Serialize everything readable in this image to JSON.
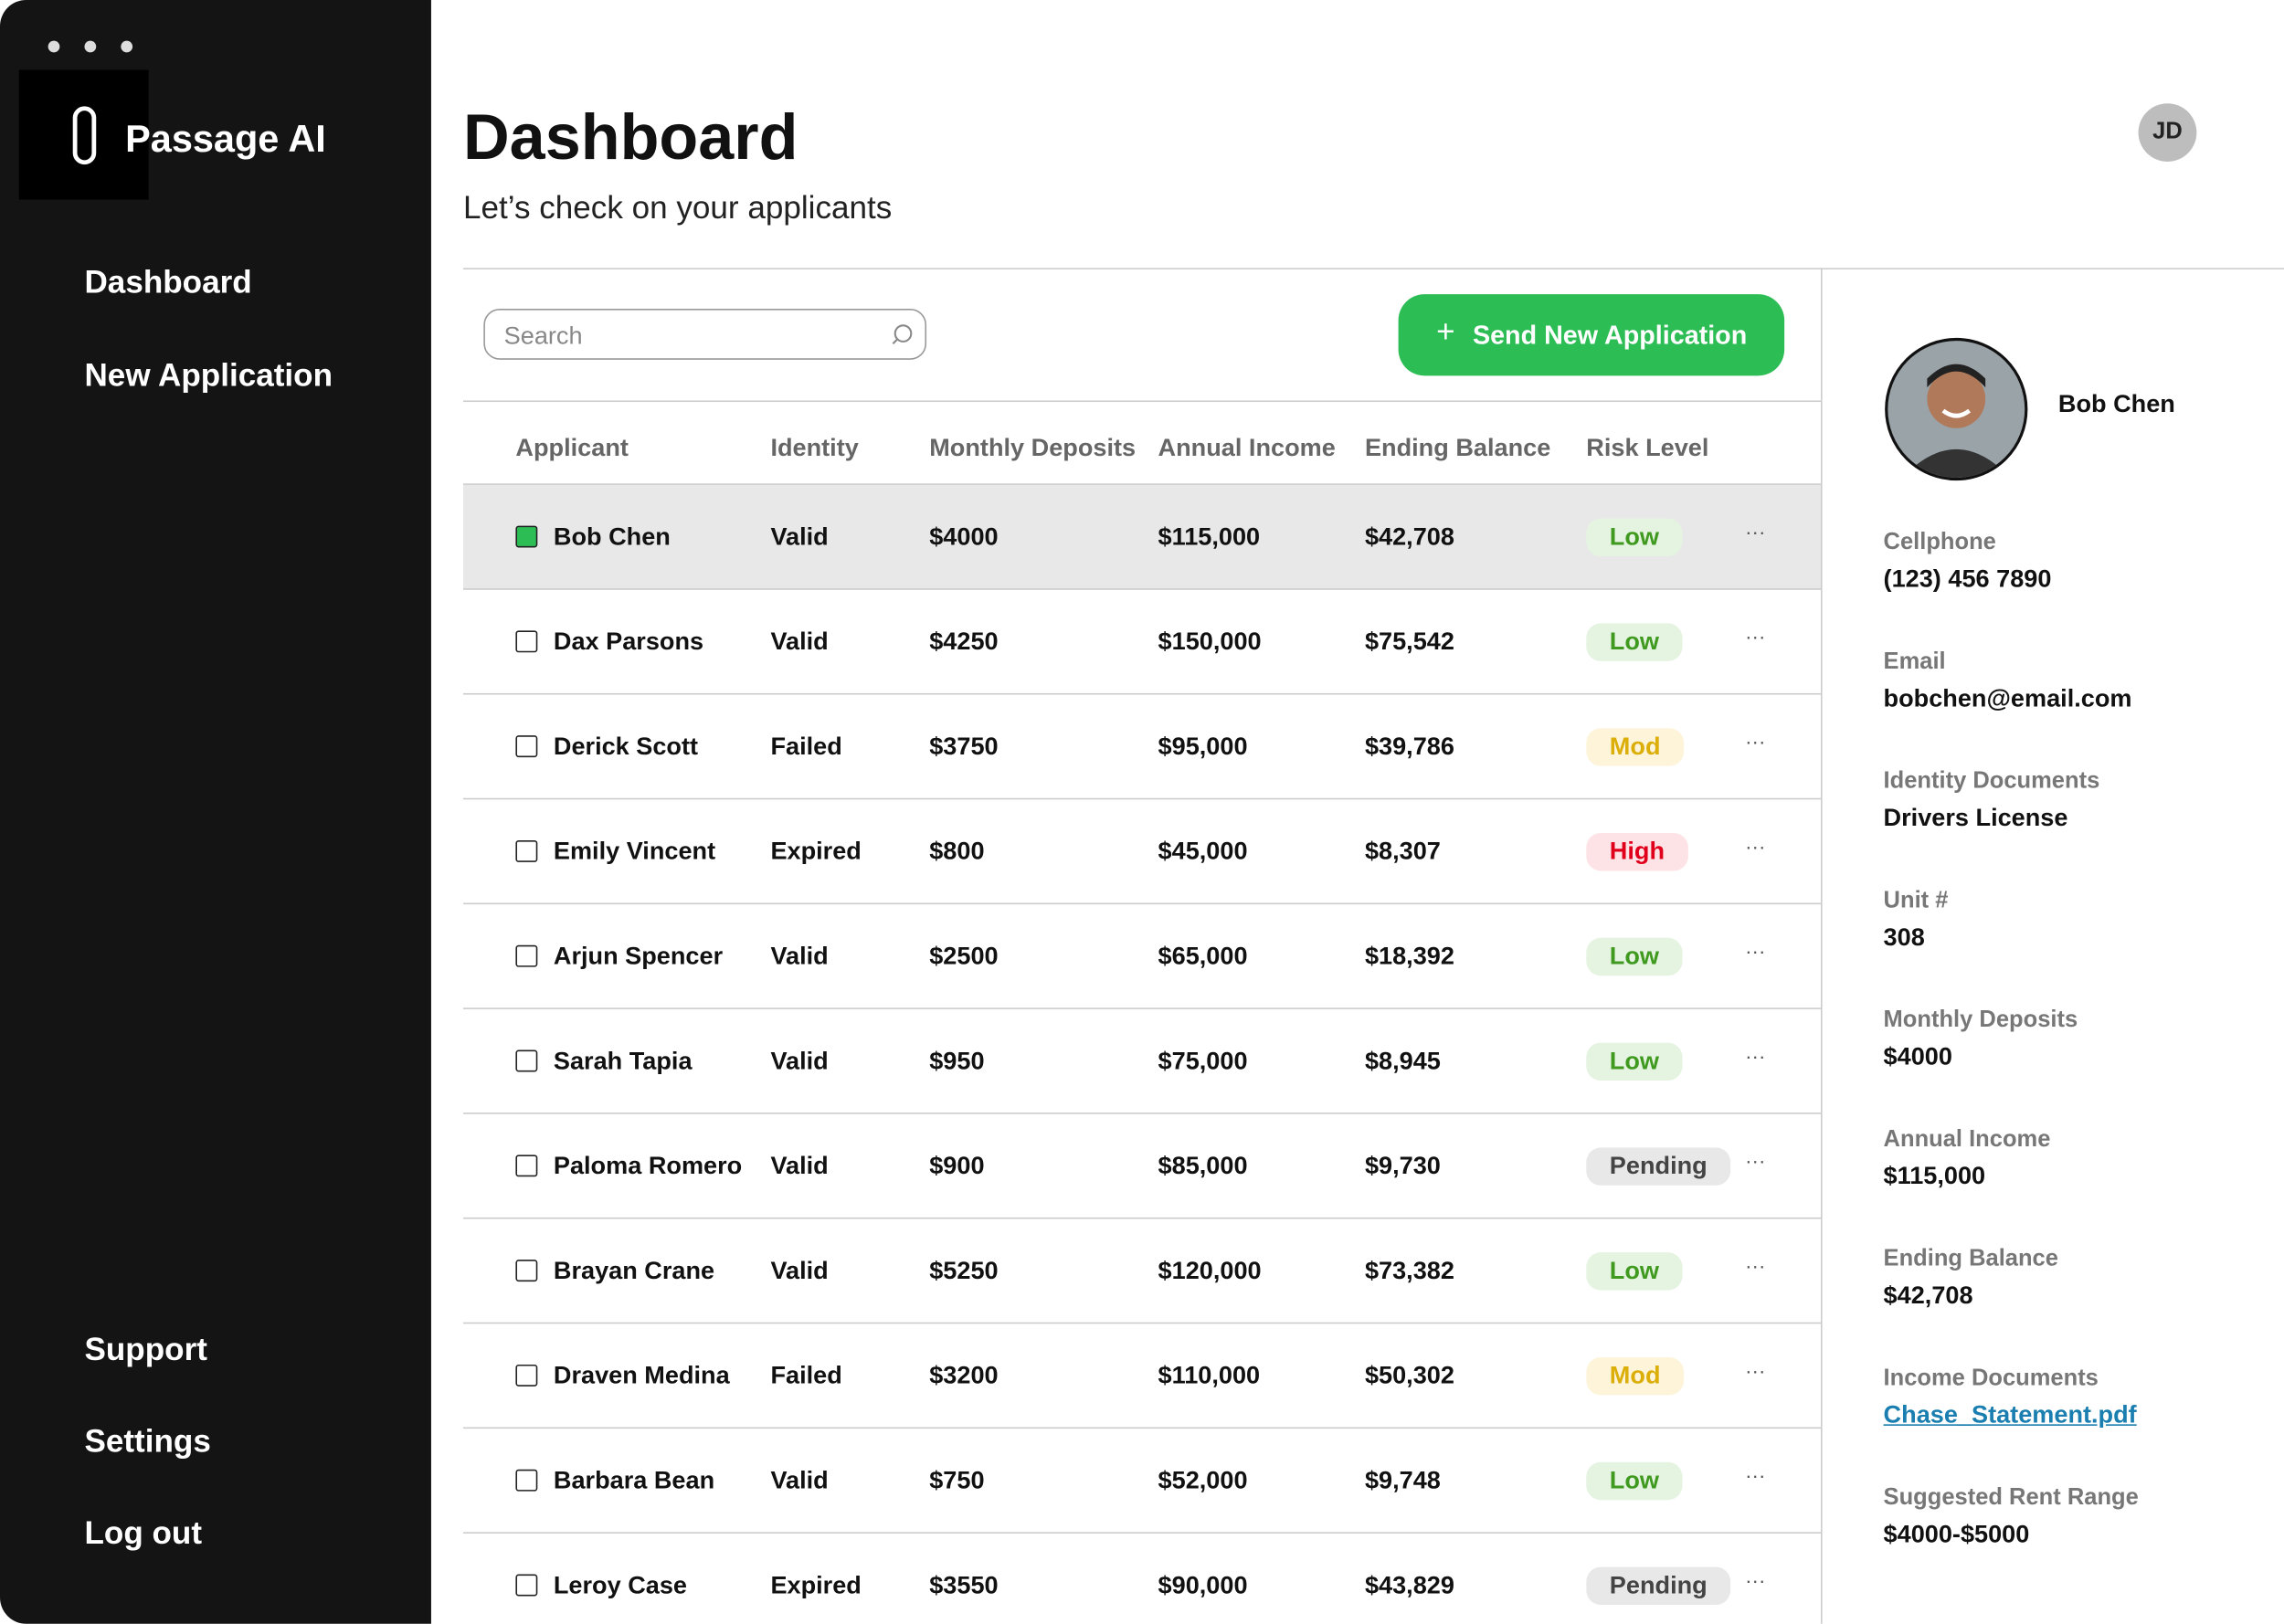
{
  "brand": "Passage AI",
  "nav": {
    "top": [
      "Dashboard",
      "New Application"
    ],
    "bottom": [
      "Support",
      "Settings",
      "Log out"
    ]
  },
  "header": {
    "title": "Dashboard",
    "subtitle": "Let’s check on your applicants",
    "avatar": "JD"
  },
  "toolbar": {
    "search_placeholder": "Search",
    "button": "Send New Application"
  },
  "table": {
    "columns": [
      "Applicant",
      "Identity",
      "Monthly Deposits",
      "Annual Income",
      "Ending Balance",
      "Risk Level"
    ],
    "rows": [
      {
        "checked": true,
        "cells": [
          "Bob Chen",
          "Valid",
          "$4000",
          "$115,000",
          "$42,708"
        ],
        "risk": {
          "label": "Low",
          "color": "#3f9a1f",
          "background": "#e5f3e1"
        }
      },
      {
        "checked": false,
        "cells": [
          "Dax Parsons",
          "Valid",
          "$4250",
          "$150,000",
          "$75,542"
        ],
        "risk": {
          "label": "Low",
          "color": "#3f9a1f",
          "background": "#e5f3e1"
        }
      },
      {
        "checked": false,
        "cells": [
          "Derick Scott",
          "Failed",
          "$3750",
          "$95,000",
          "$39,786"
        ],
        "risk": {
          "label": "Mod",
          "color": "#dcae0a",
          "background": "#fdf4da"
        }
      },
      {
        "checked": false,
        "cells": [
          "Emily Vincent",
          "Expired",
          "$800",
          "$45,000",
          "$8,307"
        ],
        "risk": {
          "label": "High",
          "color": "#e0001b",
          "background": "#fde3e5"
        }
      },
      {
        "checked": false,
        "cells": [
          "Arjun Spencer",
          "Valid",
          "$2500",
          "$65,000",
          "$18,392"
        ],
        "risk": {
          "label": "Low",
          "color": "#3f9a1f",
          "background": "#e5f3e1"
        }
      },
      {
        "checked": false,
        "cells": [
          "Sarah Tapia",
          "Valid",
          "$950",
          "$75,000",
          "$8,945"
        ],
        "risk": {
          "label": "Low",
          "color": "#3f9a1f",
          "background": "#e5f3e1"
        }
      },
      {
        "checked": false,
        "cells": [
          "Paloma Romero",
          "Valid",
          "$900",
          "$85,000",
          "$9,730"
        ],
        "risk": {
          "label": "Pending",
          "color": "#444444",
          "background": "#e8e8e8"
        }
      },
      {
        "checked": false,
        "cells": [
          "Brayan Crane",
          "Valid",
          "$5250",
          "$120,000",
          "$73,382"
        ],
        "risk": {
          "label": "Low",
          "color": "#3f9a1f",
          "background": "#e5f3e1"
        }
      },
      {
        "checked": false,
        "cells": [
          "Draven Medina",
          "Failed",
          "$3200",
          "$110,000",
          "$50,302"
        ],
        "risk": {
          "label": "Mod",
          "color": "#dcae0a",
          "background": "#fdf4da"
        }
      },
      {
        "checked": false,
        "cells": [
          "Barbara Bean",
          "Valid",
          "$750",
          "$52,000",
          "$9,748"
        ],
        "risk": {
          "label": "Low",
          "color": "#3f9a1f",
          "background": "#e5f3e1"
        }
      },
      {
        "checked": false,
        "cells": [
          "Leroy Case",
          "Expired",
          "$3550",
          "$90,000",
          "$43,829"
        ],
        "risk": {
          "label": "Pending",
          "color": "#444444",
          "background": "#e8e8e8"
        }
      }
    ]
  },
  "detail": {
    "name": "Bob Chen",
    "fields": [
      {
        "label": "Cellphone",
        "value": "(123) 456 7890"
      },
      {
        "label": "Email",
        "value": "bobchen@email.com"
      },
      {
        "label": "Identity Documents",
        "value": "Drivers License"
      },
      {
        "label": "Unit #",
        "value": "308"
      },
      {
        "label": "Monthly Deposits",
        "value": "$4000"
      },
      {
        "label": "Annual Income",
        "value": "$115,000"
      },
      {
        "label": "Ending Balance",
        "value": "$42,708"
      },
      {
        "label": "Income Documents",
        "value": "Chase_Statement.pdf",
        "link": true
      },
      {
        "label": "Suggested Rent Range",
        "value": "$4000-$5000"
      }
    ]
  }
}
